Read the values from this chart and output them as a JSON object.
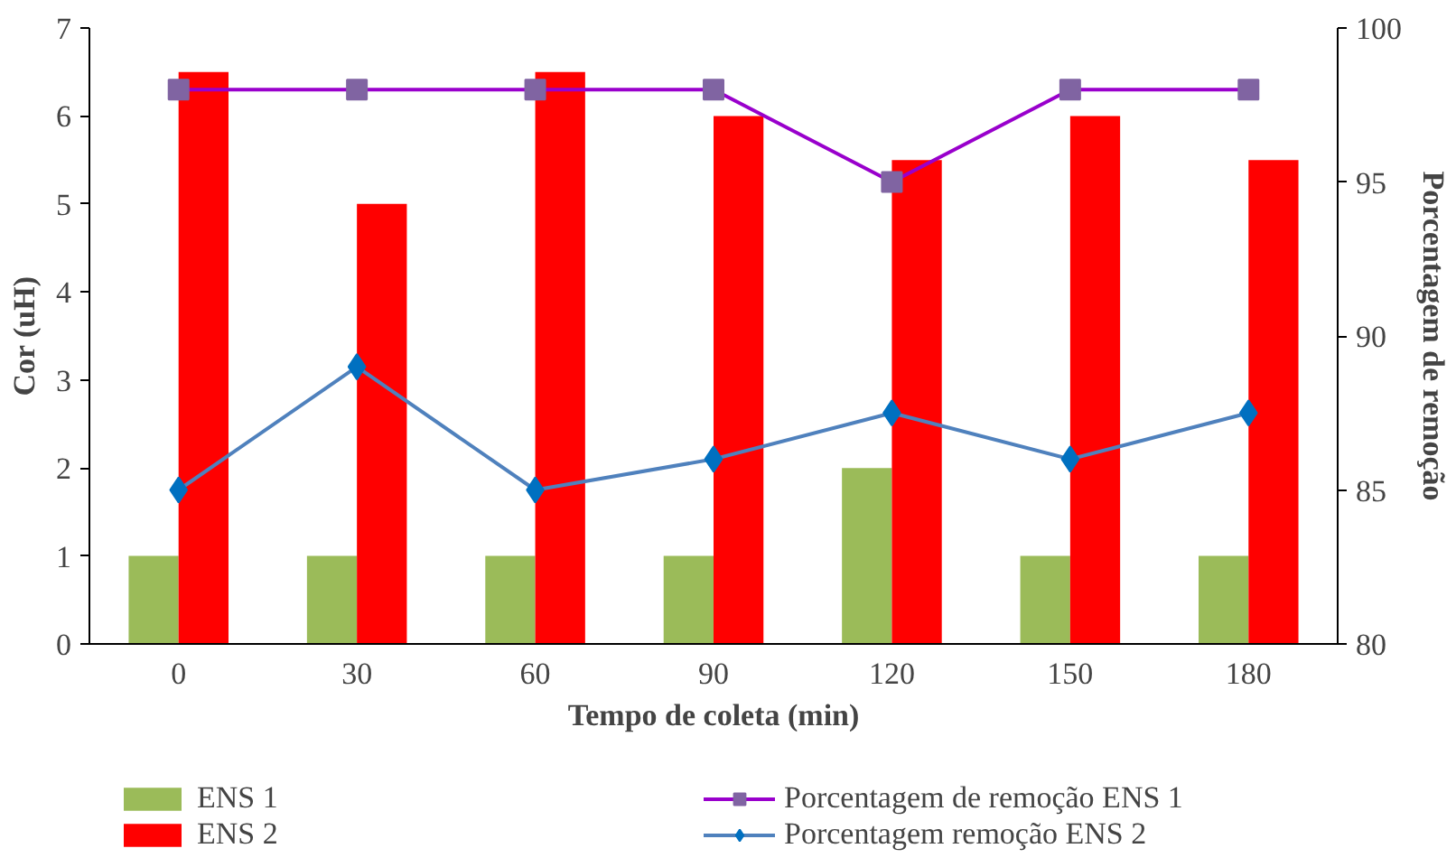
{
  "chart_data": {
    "type": "bar",
    "xlabel": "Tempo de coleta (min)",
    "ylabel": "Cor (uH)",
    "y2label": "Porcentagem de remoção",
    "categories": [
      "0",
      "30",
      "60",
      "90",
      "120",
      "150",
      "180"
    ],
    "series": [
      {
        "name": "ENS 1",
        "color": "#9bbb59",
        "values": [
          1,
          1,
          1,
          1,
          2,
          1,
          1
        ]
      },
      {
        "name": "ENS 2",
        "color": "#ff0000",
        "values": [
          6.5,
          5,
          6.5,
          6,
          5.5,
          6,
          5.5
        ]
      },
      {
        "name": "Porcentagem de remoção ENS 1",
        "type": "line",
        "axis": "y2",
        "marker": "square",
        "color": "#9900cc",
        "values": [
          98,
          98,
          98,
          98,
          95,
          98,
          98
        ]
      },
      {
        "name": "Porcentagem remoção ENS 2",
        "type": "line",
        "axis": "y2",
        "marker": "diamond",
        "color": "#4f81bd",
        "values": [
          85,
          89,
          85,
          86,
          87.5,
          86,
          87.5
        ]
      }
    ],
    "ylim": [
      0,
      7
    ],
    "yticks": [
      0,
      1,
      2,
      3,
      4,
      5,
      6,
      7
    ],
    "y2lim": [
      80,
      100
    ],
    "y2ticks": [
      80,
      85,
      90,
      95,
      100
    ],
    "grid": false,
    "legend": "bottom"
  }
}
